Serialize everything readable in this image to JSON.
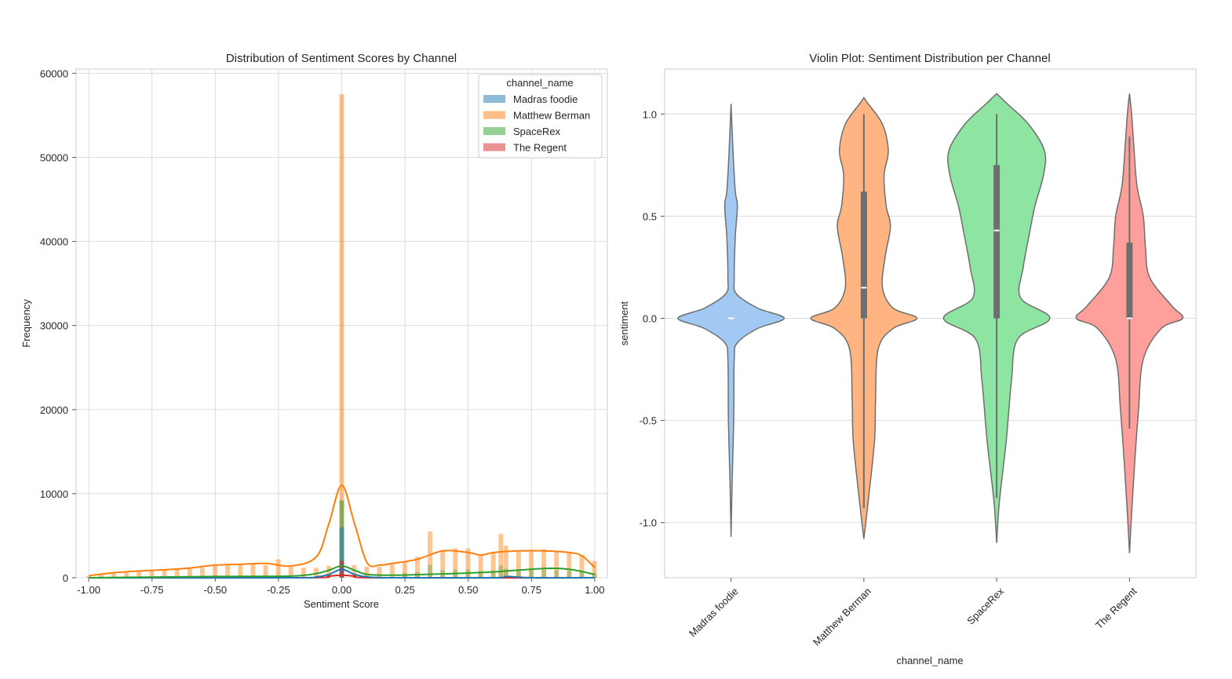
{
  "chart_data": [
    {
      "type": "histogram",
      "title": "Distribution of Sentiment Scores by Channel",
      "xlabel": "Sentiment Score",
      "ylabel": "Frequency",
      "xlim": [
        -1.05,
        1.05
      ],
      "ylim": [
        0,
        60500
      ],
      "x_ticks": [
        "-1.00",
        "-0.75",
        "-0.50",
        "-0.25",
        "0.00",
        "0.25",
        "0.50",
        "0.75",
        "1.00"
      ],
      "y_ticks": [
        "0",
        "10000",
        "20000",
        "30000",
        "40000",
        "50000",
        "60000"
      ],
      "grid": true,
      "legend": {
        "title": "channel_name",
        "placement": "top-right"
      },
      "series": [
        {
          "name": "Madras foodie",
          "color": "#1f77b4",
          "spike": 6000,
          "kde": [
            [
              -1.0,
              0
            ],
            [
              -0.2,
              0
            ],
            [
              -0.1,
              100
            ],
            [
              -0.05,
              400
            ],
            [
              0.0,
              1000
            ],
            [
              0.05,
              400
            ],
            [
              0.1,
              100
            ],
            [
              0.2,
              0
            ],
            [
              0.6,
              0
            ],
            [
              0.65,
              150
            ],
            [
              0.75,
              0
            ],
            [
              1.0,
              0
            ]
          ]
        },
        {
          "name": "Matthew Berman",
          "color": "#ff7f0e",
          "spike": 57500,
          "bars": [
            [
              -1.0,
              200
            ],
            [
              -0.95,
              350
            ],
            [
              -0.9,
              500
            ],
            [
              -0.85,
              600
            ],
            [
              -0.8,
              700
            ],
            [
              -0.75,
              800
            ],
            [
              -0.7,
              900
            ],
            [
              -0.65,
              1000
            ],
            [
              -0.6,
              1100
            ],
            [
              -0.55,
              1200
            ],
            [
              -0.5,
              1400
            ],
            [
              -0.45,
              1500
            ],
            [
              -0.4,
              1500
            ],
            [
              -0.35,
              1600
            ],
            [
              -0.3,
              1500
            ],
            [
              -0.25,
              2200
            ],
            [
              -0.2,
              1300
            ],
            [
              -0.15,
              1200
            ],
            [
              -0.1,
              1200
            ],
            [
              -0.05,
              1400
            ],
            [
              0.05,
              1500
            ],
            [
              0.1,
              1300
            ],
            [
              0.15,
              1300
            ],
            [
              0.2,
              1600
            ],
            [
              0.25,
              1900
            ],
            [
              0.3,
              2500
            ],
            [
              0.35,
              5500
            ],
            [
              0.4,
              3200
            ],
            [
              0.45,
              3500
            ],
            [
              0.5,
              3500
            ],
            [
              0.55,
              2800
            ],
            [
              0.6,
              3000
            ],
            [
              0.63,
              5200
            ],
            [
              0.65,
              3800
            ],
            [
              0.7,
              3100
            ],
            [
              0.75,
              3300
            ],
            [
              0.8,
              3400
            ],
            [
              0.85,
              3200
            ],
            [
              0.9,
              3000
            ],
            [
              0.95,
              2700
            ],
            [
              1.0,
              2000
            ]
          ],
          "kde": [
            [
              -1.0,
              250
            ],
            [
              -0.9,
              600
            ],
            [
              -0.8,
              800
            ],
            [
              -0.7,
              950
            ],
            [
              -0.6,
              1150
            ],
            [
              -0.5,
              1500
            ],
            [
              -0.4,
              1600
            ],
            [
              -0.3,
              1700
            ],
            [
              -0.2,
              1400
            ],
            [
              -0.1,
              2500
            ],
            [
              -0.05,
              6500
            ],
            [
              0.0,
              11000
            ],
            [
              0.05,
              6500
            ],
            [
              0.1,
              1800
            ],
            [
              0.15,
              1500
            ],
            [
              0.2,
              1700
            ],
            [
              0.3,
              2200
            ],
            [
              0.4,
              3200
            ],
            [
              0.5,
              3000
            ],
            [
              0.55,
              2700
            ],
            [
              0.6,
              3000
            ],
            [
              0.7,
              3200
            ],
            [
              0.8,
              3200
            ],
            [
              0.9,
              3000
            ],
            [
              0.95,
              2600
            ],
            [
              1.0,
              1200
            ]
          ]
        },
        {
          "name": "SpaceRex",
          "color": "#2ca02c",
          "spike": 9200,
          "kde": [
            [
              -1.0,
              0
            ],
            [
              -0.5,
              150
            ],
            [
              -0.2,
              200
            ],
            [
              -0.1,
              500
            ],
            [
              -0.05,
              900
            ],
            [
              0.0,
              1400
            ],
            [
              0.05,
              900
            ],
            [
              0.1,
              400
            ],
            [
              0.2,
              300
            ],
            [
              0.4,
              450
            ],
            [
              0.6,
              700
            ],
            [
              0.8,
              1100
            ],
            [
              0.9,
              1000
            ],
            [
              1.0,
              400
            ]
          ]
        },
        {
          "name": "The Regent",
          "color": "#d62728",
          "spike": 2000,
          "kde": [
            [
              -1.0,
              0
            ],
            [
              -0.15,
              0
            ],
            [
              -0.05,
              200
            ],
            [
              0.0,
              300
            ],
            [
              0.05,
              200
            ],
            [
              0.15,
              0
            ],
            [
              1.0,
              0
            ]
          ]
        }
      ]
    },
    {
      "type": "violin",
      "title": "Violin Plot: Sentiment Distribution per Channel",
      "xlabel": "channel_name",
      "ylabel": "sentiment",
      "ylim": [
        -1.27,
        1.22
      ],
      "y_ticks": [
        "-1.0",
        "-0.5",
        "0.0",
        "0.5",
        "1.0"
      ],
      "grid": true,
      "categories": [
        "Madras foodie",
        "Matthew Berman",
        "SpaceRex",
        "The Regent"
      ],
      "series": [
        {
          "name": "Madras foodie",
          "color": "#a1c9f4",
          "median": 0.0,
          "q1": 0.0,
          "q3": 0.0,
          "whisker_low": 0.0,
          "whisker_high": 0.0,
          "profile": [
            [
              -1.07,
              0
            ],
            [
              -0.8,
              0.02
            ],
            [
              -0.5,
              0.05
            ],
            [
              -0.2,
              0.06
            ],
            [
              -0.12,
              0.12
            ],
            [
              -0.05,
              0.5
            ],
            [
              0.0,
              1.0
            ],
            [
              0.05,
              0.5
            ],
            [
              0.12,
              0.1
            ],
            [
              0.2,
              0.06
            ],
            [
              0.4,
              0.08
            ],
            [
              0.55,
              0.12
            ],
            [
              0.62,
              0.08
            ],
            [
              0.8,
              0.04
            ],
            [
              1.05,
              0
            ]
          ]
        },
        {
          "name": "Matthew Berman",
          "color": "#ffb482",
          "median": 0.15,
          "q1": 0.0,
          "q3": 0.62,
          "whisker_low": -0.93,
          "whisker_high": 1.0,
          "profile": [
            [
              -1.08,
              0
            ],
            [
              -0.9,
              0.08
            ],
            [
              -0.6,
              0.2
            ],
            [
              -0.4,
              0.22
            ],
            [
              -0.15,
              0.27
            ],
            [
              -0.05,
              0.55
            ],
            [
              0.0,
              1.0
            ],
            [
              0.05,
              0.55
            ],
            [
              0.15,
              0.35
            ],
            [
              0.3,
              0.4
            ],
            [
              0.45,
              0.5
            ],
            [
              0.55,
              0.42
            ],
            [
              0.7,
              0.38
            ],
            [
              0.82,
              0.46
            ],
            [
              0.95,
              0.35
            ],
            [
              1.05,
              0.08
            ],
            [
              1.08,
              0
            ]
          ]
        },
        {
          "name": "SpaceRex",
          "color": "#8de5a1",
          "median": 0.43,
          "q1": 0.0,
          "q3": 0.75,
          "whisker_low": -0.88,
          "whisker_high": 1.0,
          "profile": [
            [
              -1.1,
              0
            ],
            [
              -0.9,
              0.05
            ],
            [
              -0.6,
              0.18
            ],
            [
              -0.3,
              0.28
            ],
            [
              -0.1,
              0.4
            ],
            [
              0.0,
              1.0
            ],
            [
              0.1,
              0.45
            ],
            [
              0.25,
              0.5
            ],
            [
              0.42,
              0.62
            ],
            [
              0.55,
              0.72
            ],
            [
              0.7,
              0.88
            ],
            [
              0.82,
              0.9
            ],
            [
              0.95,
              0.6
            ],
            [
              1.05,
              0.2
            ],
            [
              1.1,
              0
            ]
          ]
        },
        {
          "name": "The Regent",
          "color": "#ff9f9b",
          "median": 0.0,
          "q1": 0.0,
          "q3": 0.37,
          "whisker_low": -0.54,
          "whisker_high": 0.89,
          "profile": [
            [
              -1.15,
              0
            ],
            [
              -1.0,
              0.03
            ],
            [
              -0.7,
              0.1
            ],
            [
              -0.45,
              0.17
            ],
            [
              -0.2,
              0.26
            ],
            [
              -0.05,
              0.6
            ],
            [
              0.0,
              1.0
            ],
            [
              0.06,
              0.8
            ],
            [
              0.2,
              0.38
            ],
            [
              0.35,
              0.3
            ],
            [
              0.5,
              0.26
            ],
            [
              0.65,
              0.14
            ],
            [
              0.85,
              0.08
            ],
            [
              1.0,
              0.04
            ],
            [
              1.1,
              0
            ]
          ]
        }
      ]
    }
  ]
}
